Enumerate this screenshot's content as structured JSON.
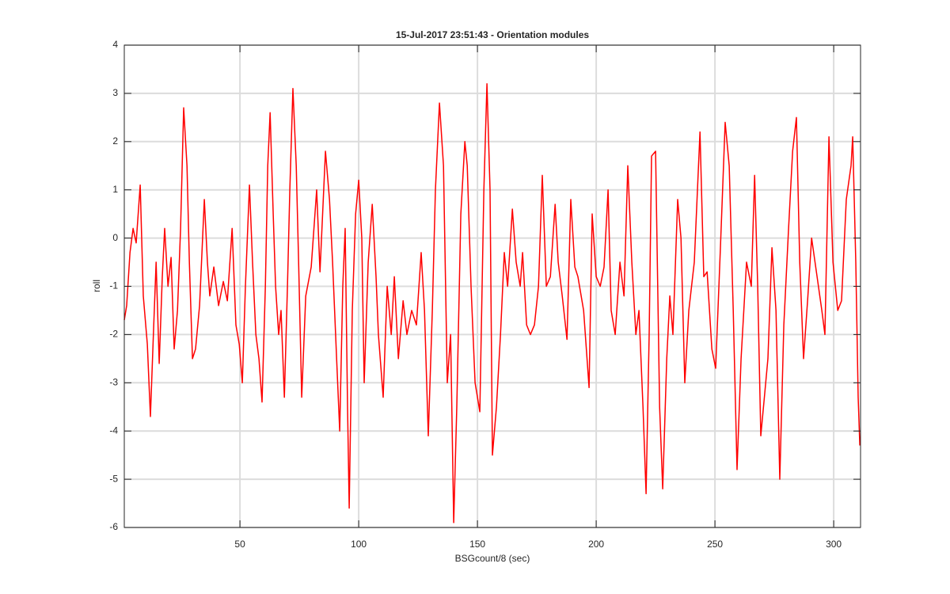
{
  "chart_data": {
    "type": "line",
    "title": "15-Jul-2017 23:51:43 - Orientation modules",
    "x_label": "BSGcount/8 (sec)",
    "y_label": "roll",
    "color": "#ff0000",
    "grid": true,
    "xlim": [
      1.3,
      311.3
    ],
    "ylim": [
      -6,
      4
    ],
    "xticks": [
      50,
      100,
      150,
      200,
      250,
      300
    ],
    "yticks": [
      -6,
      -5,
      -4,
      -3,
      -2,
      -1,
      0,
      1,
      2,
      3,
      4
    ],
    "x": [
      1.3,
      2.3,
      3.7,
      5,
      6.3,
      8,
      9.3,
      11,
      12.3,
      13.7,
      14.7,
      16,
      17.3,
      18.3,
      19.7,
      21,
      22.3,
      23.7,
      25,
      26.3,
      27.7,
      28.7,
      30,
      31.3,
      33,
      35,
      36.3,
      37.3,
      39,
      41,
      43,
      44.7,
      46.7,
      48.3,
      49.7,
      51,
      52.3,
      54,
      55.3,
      56.7,
      58,
      59.3,
      60.7,
      61.7,
      62.7,
      64,
      65,
      66.3,
      67.3,
      68.7,
      70,
      71,
      72.3,
      73.7,
      74.7,
      76,
      77.7,
      80,
      82.3,
      83.7,
      86,
      87.7,
      89,
      90.7,
      92,
      93.3,
      94.3,
      95.3,
      96,
      97.3,
      98.7,
      100,
      101.3,
      102.3,
      104,
      105.7,
      107.3,
      108.3,
      110.3,
      112,
      113.7,
      115,
      116.7,
      118.7,
      120.3,
      122.3,
      124.3,
      126.3,
      127.7,
      129.3,
      131,
      132.3,
      134,
      135.7,
      137.3,
      138.7,
      140,
      141.3,
      143,
      144.7,
      145.7,
      147.3,
      149,
      151,
      152.7,
      154,
      155.3,
      156.3,
      158,
      159.7,
      161.3,
      162.7,
      164.7,
      166.3,
      168,
      169,
      170.7,
      172.3,
      174,
      175.7,
      177.3,
      179,
      180.7,
      182.7,
      184,
      185.7,
      187.7,
      189.3,
      191,
      192.3,
      194.7,
      197,
      198.3,
      200,
      201.7,
      203.3,
      205,
      206.3,
      208,
      210,
      211.7,
      213.3,
      215,
      216.7,
      218,
      219.7,
      221,
      222.3,
      223.3,
      225,
      226.7,
      228,
      229.7,
      231,
      232.3,
      234.3,
      235.7,
      237.3,
      239,
      241.3,
      243.7,
      245.3,
      246.7,
      248.7,
      250.3,
      252.3,
      254.3,
      256,
      257.7,
      259.3,
      261,
      263.3,
      265.3,
      266.7,
      268,
      269.3,
      271,
      272.3,
      274,
      275.7,
      277.3,
      279,
      281,
      282.7,
      284.3,
      285.7,
      287.3,
      289,
      290.7,
      293,
      295,
      296.3,
      298,
      299.7,
      301.7,
      303.3,
      305.3,
      307.3,
      308,
      309.3,
      310.3,
      311
    ],
    "values": [
      -1.7,
      -1.4,
      -0.3,
      0.2,
      -0.1,
      1.1,
      -1.2,
      -2.2,
      -3.7,
      -1.8,
      -0.5,
      -2.6,
      -0.8,
      0.2,
      -1.0,
      -0.4,
      -2.3,
      -1.5,
      0.2,
      2.7,
      1.5,
      -0.5,
      -2.5,
      -2.3,
      -1.4,
      0.8,
      -0.5,
      -1.2,
      -0.6,
      -1.4,
      -0.9,
      -1.3,
      0.2,
      -1.8,
      -2.2,
      -3.0,
      -1.0,
      1.1,
      -0.5,
      -2.0,
      -2.5,
      -3.4,
      -1.0,
      1.5,
      2.6,
      0.5,
      -1.0,
      -2.0,
      -1.5,
      -3.3,
      -1.0,
      1.0,
      3.1,
      1.5,
      -0.5,
      -3.3,
      -1.2,
      -0.6,
      1.0,
      -0.7,
      1.8,
      0.8,
      -0.5,
      -2.5,
      -4.0,
      -1.0,
      0.2,
      -3.5,
      -5.6,
      -1.5,
      0.5,
      1.2,
      0.0,
      -3.0,
      -0.5,
      0.7,
      -0.8,
      -2.0,
      -3.3,
      -1.0,
      -2.0,
      -0.8,
      -2.5,
      -1.3,
      -2.0,
      -1.5,
      -1.8,
      -0.3,
      -1.5,
      -4.1,
      -1.5,
      1.0,
      2.8,
      1.5,
      -3.0,
      -2.0,
      -5.9,
      -3.5,
      0.5,
      2.0,
      1.5,
      -1.0,
      -3.0,
      -3.6,
      1.0,
      3.2,
      1.0,
      -4.5,
      -3.5,
      -2.0,
      -0.3,
      -1.0,
      0.6,
      -0.5,
      -1.0,
      -0.3,
      -1.8,
      -2.0,
      -1.8,
      -1.0,
      1.3,
      -1.0,
      -0.8,
      0.7,
      -0.5,
      -1.2,
      -2.1,
      0.8,
      -0.6,
      -0.8,
      -1.5,
      -3.1,
      0.5,
      -0.8,
      -1.0,
      -0.6,
      1.0,
      -1.5,
      -2.0,
      -0.5,
      -1.2,
      1.5,
      -0.5,
      -2.0,
      -1.5,
      -3.5,
      -5.3,
      -2.0,
      1.7,
      1.8,
      -3.5,
      -5.2,
      -2.5,
      -1.2,
      -2.0,
      0.8,
      0.0,
      -3.0,
      -1.5,
      -0.5,
      2.2,
      -0.8,
      -0.7,
      -2.3,
      -2.7,
      -0.2,
      2.4,
      1.5,
      -1.5,
      -4.8,
      -2.5,
      -0.5,
      -1.0,
      1.3,
      -1.0,
      -4.1,
      -3.2,
      -2.5,
      -0.2,
      -1.5,
      -5.0,
      -1.8,
      0.2,
      1.8,
      2.5,
      -0.5,
      -2.5,
      -1.3,
      0.0,
      -0.8,
      -1.5,
      -2.0,
      2.1,
      -0.5,
      -1.5,
      -1.3,
      0.8,
      1.5,
      2.1,
      -0.5,
      -3.3,
      -4.3
    ]
  }
}
